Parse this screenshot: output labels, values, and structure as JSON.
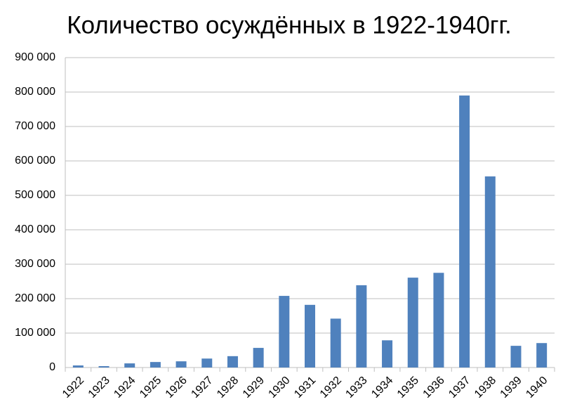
{
  "chart_data": {
    "type": "bar",
    "title": "Количество осуждённых в 1922-1940гг.",
    "categories": [
      "1922",
      "1923",
      "1924",
      "1925",
      "1926",
      "1927",
      "1928",
      "1929",
      "1930",
      "1931",
      "1932",
      "1933",
      "1934",
      "1935",
      "1936",
      "1937",
      "1938",
      "1939",
      "1940"
    ],
    "values": [
      6000,
      4000,
      12000,
      16000,
      18000,
      26000,
      33000,
      57000,
      208000,
      182000,
      142000,
      239000,
      79000,
      261000,
      275000,
      790000,
      555000,
      63000,
      71000
    ],
    "color": "#4f81bd",
    "ylim": [
      0,
      900000
    ],
    "yticks": [
      {
        "value": 0,
        "label": "0"
      },
      {
        "value": 100000,
        "label": "100 000"
      },
      {
        "value": 200000,
        "label": "200 000"
      },
      {
        "value": 300000,
        "label": "300 000"
      },
      {
        "value": 400000,
        "label": "400 000"
      },
      {
        "value": 500000,
        "label": "500 000"
      },
      {
        "value": 600000,
        "label": "600 000"
      },
      {
        "value": 700000,
        "label": "700 000"
      },
      {
        "value": 800000,
        "label": "800 000"
      },
      {
        "value": 900000,
        "label": "900 000"
      }
    ],
    "grid": true
  }
}
